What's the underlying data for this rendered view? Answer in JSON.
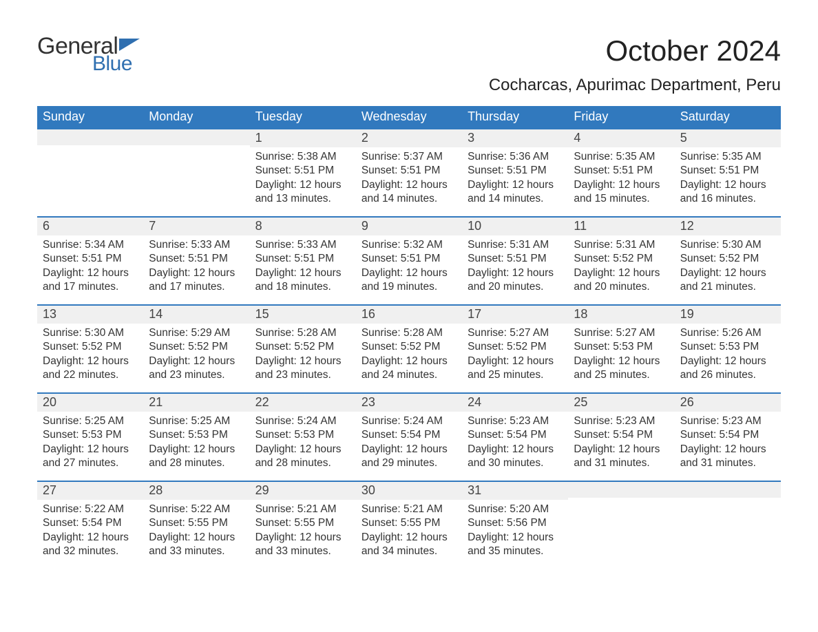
{
  "logo": {
    "text_top": "General",
    "text_bottom": "Blue",
    "flag_color": "#2f6fb0"
  },
  "title": "October 2024",
  "location": "Cocharcas, Apurimac Department, Peru",
  "colors": {
    "header_bg": "#3179be",
    "header_text": "#ffffff",
    "daybar_bg": "#f0f0f0",
    "daybar_border": "#3179be",
    "body_text": "#333333",
    "page_bg": "#ffffff"
  },
  "day_names": [
    "Sunday",
    "Monday",
    "Tuesday",
    "Wednesday",
    "Thursday",
    "Friday",
    "Saturday"
  ],
  "weeks": [
    [
      {
        "n": "",
        "sunrise": "",
        "sunset": "",
        "daylight": ""
      },
      {
        "n": "",
        "sunrise": "",
        "sunset": "",
        "daylight": ""
      },
      {
        "n": "1",
        "sunrise": "Sunrise: 5:38 AM",
        "sunset": "Sunset: 5:51 PM",
        "daylight": "Daylight: 12 hours and 13 minutes."
      },
      {
        "n": "2",
        "sunrise": "Sunrise: 5:37 AM",
        "sunset": "Sunset: 5:51 PM",
        "daylight": "Daylight: 12 hours and 14 minutes."
      },
      {
        "n": "3",
        "sunrise": "Sunrise: 5:36 AM",
        "sunset": "Sunset: 5:51 PM",
        "daylight": "Daylight: 12 hours and 14 minutes."
      },
      {
        "n": "4",
        "sunrise": "Sunrise: 5:35 AM",
        "sunset": "Sunset: 5:51 PM",
        "daylight": "Daylight: 12 hours and 15 minutes."
      },
      {
        "n": "5",
        "sunrise": "Sunrise: 5:35 AM",
        "sunset": "Sunset: 5:51 PM",
        "daylight": "Daylight: 12 hours and 16 minutes."
      }
    ],
    [
      {
        "n": "6",
        "sunrise": "Sunrise: 5:34 AM",
        "sunset": "Sunset: 5:51 PM",
        "daylight": "Daylight: 12 hours and 17 minutes."
      },
      {
        "n": "7",
        "sunrise": "Sunrise: 5:33 AM",
        "sunset": "Sunset: 5:51 PM",
        "daylight": "Daylight: 12 hours and 17 minutes."
      },
      {
        "n": "8",
        "sunrise": "Sunrise: 5:33 AM",
        "sunset": "Sunset: 5:51 PM",
        "daylight": "Daylight: 12 hours and 18 minutes."
      },
      {
        "n": "9",
        "sunrise": "Sunrise: 5:32 AM",
        "sunset": "Sunset: 5:51 PM",
        "daylight": "Daylight: 12 hours and 19 minutes."
      },
      {
        "n": "10",
        "sunrise": "Sunrise: 5:31 AM",
        "sunset": "Sunset: 5:51 PM",
        "daylight": "Daylight: 12 hours and 20 minutes."
      },
      {
        "n": "11",
        "sunrise": "Sunrise: 5:31 AM",
        "sunset": "Sunset: 5:52 PM",
        "daylight": "Daylight: 12 hours and 20 minutes."
      },
      {
        "n": "12",
        "sunrise": "Sunrise: 5:30 AM",
        "sunset": "Sunset: 5:52 PM",
        "daylight": "Daylight: 12 hours and 21 minutes."
      }
    ],
    [
      {
        "n": "13",
        "sunrise": "Sunrise: 5:30 AM",
        "sunset": "Sunset: 5:52 PM",
        "daylight": "Daylight: 12 hours and 22 minutes."
      },
      {
        "n": "14",
        "sunrise": "Sunrise: 5:29 AM",
        "sunset": "Sunset: 5:52 PM",
        "daylight": "Daylight: 12 hours and 23 minutes."
      },
      {
        "n": "15",
        "sunrise": "Sunrise: 5:28 AM",
        "sunset": "Sunset: 5:52 PM",
        "daylight": "Daylight: 12 hours and 23 minutes."
      },
      {
        "n": "16",
        "sunrise": "Sunrise: 5:28 AM",
        "sunset": "Sunset: 5:52 PM",
        "daylight": "Daylight: 12 hours and 24 minutes."
      },
      {
        "n": "17",
        "sunrise": "Sunrise: 5:27 AM",
        "sunset": "Sunset: 5:52 PM",
        "daylight": "Daylight: 12 hours and 25 minutes."
      },
      {
        "n": "18",
        "sunrise": "Sunrise: 5:27 AM",
        "sunset": "Sunset: 5:53 PM",
        "daylight": "Daylight: 12 hours and 25 minutes."
      },
      {
        "n": "19",
        "sunrise": "Sunrise: 5:26 AM",
        "sunset": "Sunset: 5:53 PM",
        "daylight": "Daylight: 12 hours and 26 minutes."
      }
    ],
    [
      {
        "n": "20",
        "sunrise": "Sunrise: 5:25 AM",
        "sunset": "Sunset: 5:53 PM",
        "daylight": "Daylight: 12 hours and 27 minutes."
      },
      {
        "n": "21",
        "sunrise": "Sunrise: 5:25 AM",
        "sunset": "Sunset: 5:53 PM",
        "daylight": "Daylight: 12 hours and 28 minutes."
      },
      {
        "n": "22",
        "sunrise": "Sunrise: 5:24 AM",
        "sunset": "Sunset: 5:53 PM",
        "daylight": "Daylight: 12 hours and 28 minutes."
      },
      {
        "n": "23",
        "sunrise": "Sunrise: 5:24 AM",
        "sunset": "Sunset: 5:54 PM",
        "daylight": "Daylight: 12 hours and 29 minutes."
      },
      {
        "n": "24",
        "sunrise": "Sunrise: 5:23 AM",
        "sunset": "Sunset: 5:54 PM",
        "daylight": "Daylight: 12 hours and 30 minutes."
      },
      {
        "n": "25",
        "sunrise": "Sunrise: 5:23 AM",
        "sunset": "Sunset: 5:54 PM",
        "daylight": "Daylight: 12 hours and 31 minutes."
      },
      {
        "n": "26",
        "sunrise": "Sunrise: 5:23 AM",
        "sunset": "Sunset: 5:54 PM",
        "daylight": "Daylight: 12 hours and 31 minutes."
      }
    ],
    [
      {
        "n": "27",
        "sunrise": "Sunrise: 5:22 AM",
        "sunset": "Sunset: 5:54 PM",
        "daylight": "Daylight: 12 hours and 32 minutes."
      },
      {
        "n": "28",
        "sunrise": "Sunrise: 5:22 AM",
        "sunset": "Sunset: 5:55 PM",
        "daylight": "Daylight: 12 hours and 33 minutes."
      },
      {
        "n": "29",
        "sunrise": "Sunrise: 5:21 AM",
        "sunset": "Sunset: 5:55 PM",
        "daylight": "Daylight: 12 hours and 33 minutes."
      },
      {
        "n": "30",
        "sunrise": "Sunrise: 5:21 AM",
        "sunset": "Sunset: 5:55 PM",
        "daylight": "Daylight: 12 hours and 34 minutes."
      },
      {
        "n": "31",
        "sunrise": "Sunrise: 5:20 AM",
        "sunset": "Sunset: 5:56 PM",
        "daylight": "Daylight: 12 hours and 35 minutes."
      },
      {
        "n": "",
        "sunrise": "",
        "sunset": "",
        "daylight": ""
      },
      {
        "n": "",
        "sunrise": "",
        "sunset": "",
        "daylight": ""
      }
    ]
  ]
}
